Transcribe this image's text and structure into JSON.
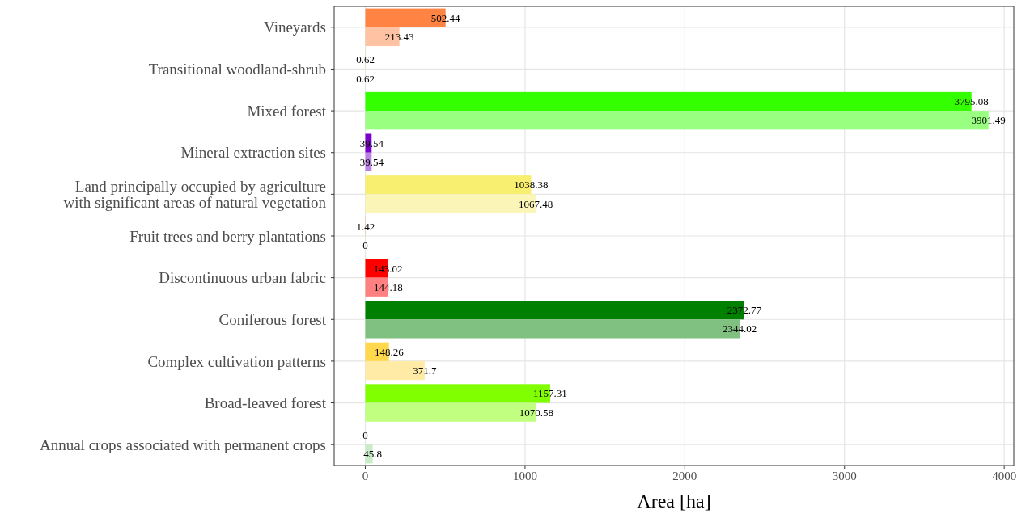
{
  "chart_data": {
    "type": "bar",
    "orientation": "horizontal",
    "xlabel": "Area [ha]",
    "categories": [
      "Vineyards",
      "Transitional woodland-shrub",
      "Mixed forest",
      "Mineral extraction sites",
      "Land principally occupied by agriculture\nwith significant areas of natural vegetation",
      "Fruit trees and berry plantations",
      "Discontinuous urban fabric",
      "Coniferous forest",
      "Complex cultivation patterns",
      "Broad-leaved forest",
      "Annual crops associated with permanent crops"
    ],
    "series": [
      {
        "values": [
          502.44,
          0.62,
          3795.08,
          39.54,
          1038.38,
          1.42,
          143.02,
          2372.77,
          148.26,
          1157.31,
          0
        ],
        "colors": [
          "#ff8444",
          "#a6f200",
          "#33ff00",
          "#7a00cc",
          "#f8ee70",
          "#f2a64d",
          "#ff0000",
          "#008000",
          "#ffd84d",
          "#80ff00",
          "#ffe6a6"
        ]
      },
      {
        "values": [
          213.43,
          0.62,
          3901.49,
          39.54,
          1067.48,
          0,
          144.18,
          2344.02,
          371.7,
          1070.58,
          45.8
        ],
        "colors": [
          "#ffc2a2",
          "#d3f98c",
          "#99ff80",
          "#bc80e6",
          "#fbf6b7",
          "#f9d3a6",
          "#ff8080",
          "#80c080",
          "#ffeba6",
          "#c0ff80",
          "#c8ebc8"
        ]
      }
    ],
    "xlim": [
      -195,
      4060
    ],
    "xticks": [
      0,
      1000,
      2000,
      3000,
      4000
    ],
    "grid": true,
    "data_labels": true
  }
}
